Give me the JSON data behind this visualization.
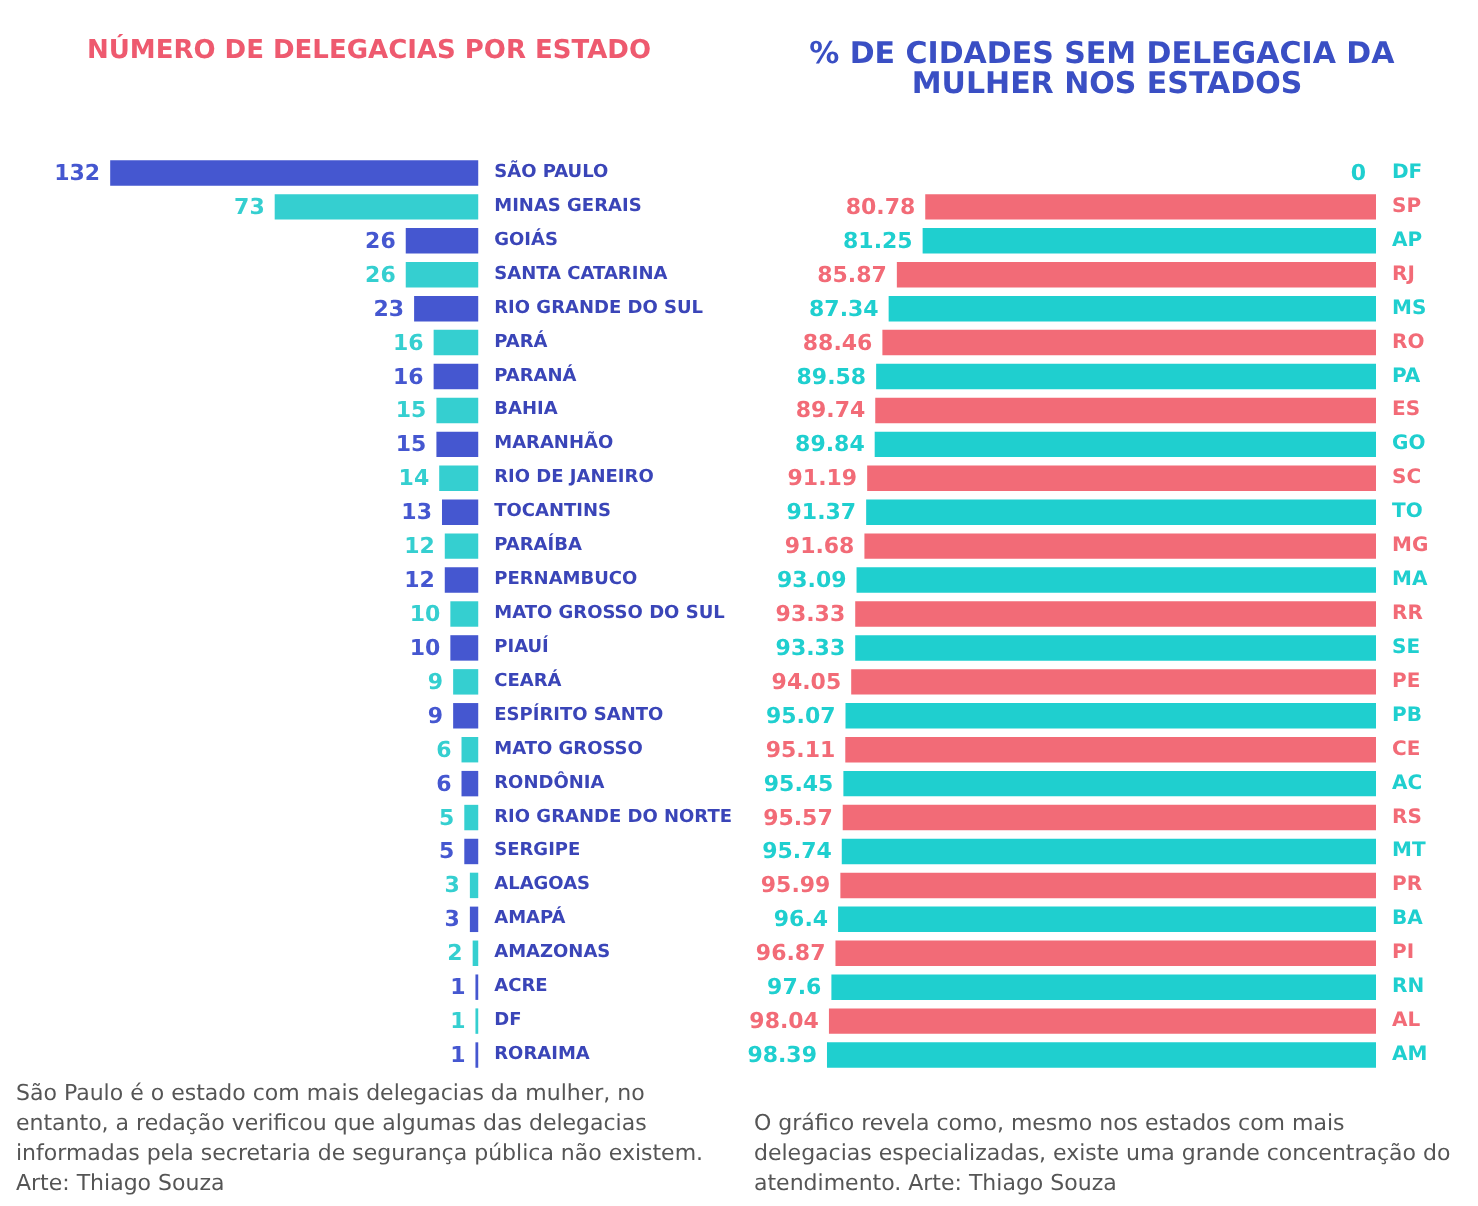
{
  "chart_data": [
    {
      "type": "bar",
      "title": "NÚMERO DE DELEGACIAS POR ESTADO",
      "orientation": "horizontal",
      "data_labels": true,
      "categories": [
        "SÃO PAULO",
        "MINAS GERAIS",
        "GOIÁS",
        "SANTA CATARINA",
        "RIO GRANDE DO SUL",
        "PARÁ",
        "PARANÁ",
        "BAHIA",
        "MARANHÃO",
        "RIO DE JANEIRO",
        "TOCANTINS",
        "PARAÍBA",
        "PERNAMBUCO",
        "MATO GROSSO DO SUL",
        "PIAUÍ",
        "CEARÁ",
        "ESPÍRITO SANTO",
        "MATO GROSSO",
        "RONDÔNIA",
        "RIO GRANDE DO NORTE",
        "SERGIPE",
        "ALAGOAS",
        "AMAPÁ",
        "AMAZONAS",
        "ACRE",
        "DF",
        "RORAIMA"
      ],
      "values": [
        132,
        73,
        26,
        26,
        23,
        16,
        16,
        15,
        15,
        14,
        13,
        12,
        12,
        10,
        10,
        9,
        9,
        6,
        6,
        5,
        5,
        3,
        3,
        2,
        1,
        1,
        1
      ],
      "colors": [
        "#4557d0",
        "#35cfd0",
        "#4557d0",
        "#35cfd0",
        "#4557d0",
        "#35cfd0",
        "#4557d0",
        "#35cfd0",
        "#4557d0",
        "#35cfd0",
        "#4557d0",
        "#35cfd0",
        "#4557d0",
        "#35cfd0",
        "#4557d0",
        "#35cfd0",
        "#4557d0",
        "#35cfd0",
        "#4557d0",
        "#35cfd0",
        "#4557d0",
        "#35cfd0",
        "#4557d0",
        "#35cfd0",
        "#4557d0",
        "#35cfd0",
        "#4557d0"
      ],
      "annotations": [
        "São Paulo é o estado com mais delegacias da mulher, no entanto, a redação verificou que algumas das delegacias informadas pela secretaria de segurança pública não existem. Arte: Thiago Souza"
      ]
    },
    {
      "type": "bar",
      "title": "% DE CIDADES SEM DELEGACIA DA MULHER NOS ESTADOS",
      "orientation": "horizontal",
      "data_labels": true,
      "categories": [
        "DF",
        "SP",
        "AP",
        "RJ",
        "MS",
        "RO",
        "PA",
        "ES",
        "GO",
        "SC",
        "TO",
        "MG",
        "MA",
        "RR",
        "SE",
        "PE",
        "PB",
        "CE",
        "AC",
        "RS",
        "MT",
        "PR",
        "BA",
        "PI",
        "RN",
        "AL",
        "AM"
      ],
      "values": [
        0,
        80.78,
        81.25,
        85.87,
        87.34,
        88.46,
        89.58,
        89.74,
        89.84,
        91.19,
        91.37,
        91.68,
        93.09,
        93.33,
        93.33,
        94.05,
        95.07,
        95.11,
        95.45,
        95.57,
        95.74,
        95.99,
        96.4,
        96.87,
        97.6,
        98.04,
        98.39
      ],
      "colors": [
        "#1fcfcf",
        "#f26b77",
        "#1fcfcf",
        "#f26b77",
        "#1fcfcf",
        "#f26b77",
        "#1fcfcf",
        "#f26b77",
        "#1fcfcf",
        "#f26b77",
        "#1fcfcf",
        "#f26b77",
        "#1fcfcf",
        "#f26b77",
        "#1fcfcf",
        "#f26b77",
        "#1fcfcf",
        "#f26b77",
        "#1fcfcf",
        "#f26b77",
        "#1fcfcf",
        "#f26b77",
        "#1fcfcf",
        "#f26b77",
        "#1fcfcf",
        "#f26b77",
        "#1fcfcf"
      ],
      "annotations": [
        "O gráfico revela como, mesmo nos estados com mais delegacias especializadas, existe uma grande concentração do atendimento. Arte: Thiago Souza"
      ]
    }
  ]
}
